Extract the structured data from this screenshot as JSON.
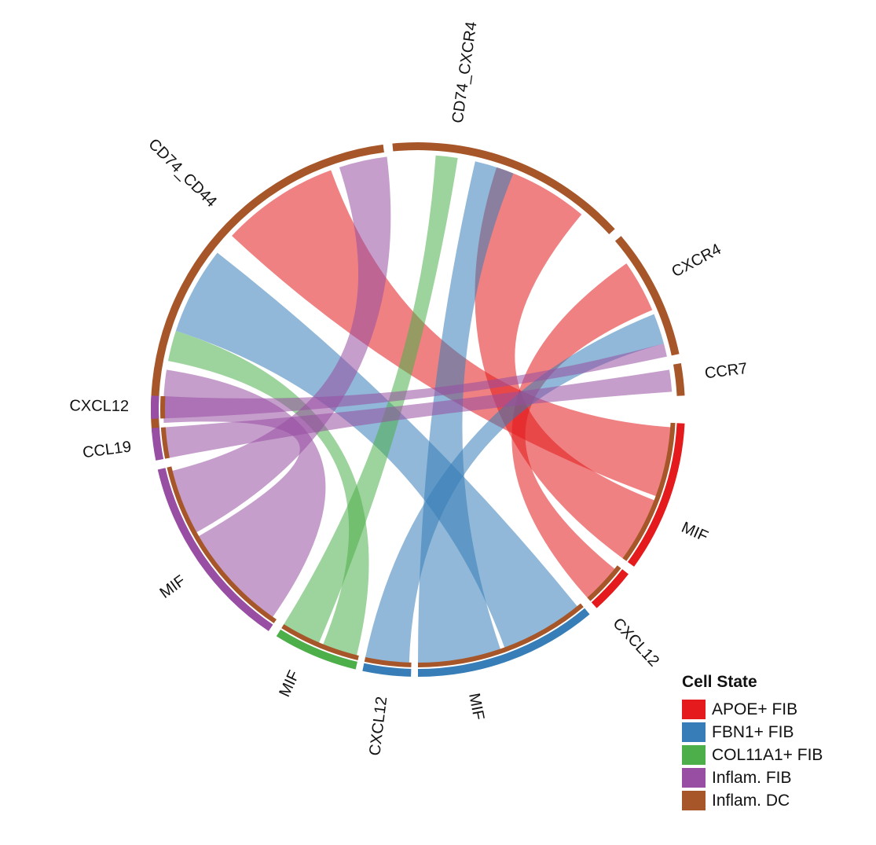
{
  "colors": {
    "apoe": "#e41a1c",
    "fbn1": "#377eb8",
    "col11": "#4daf4a",
    "inflam_fib": "#984ea3",
    "inflam_dc": "#a65628"
  },
  "legend": {
    "title": "Cell State",
    "items": [
      {
        "label": "APOE+ FIB",
        "color": "#e41a1c"
      },
      {
        "label": "FBN1+ FIB",
        "color": "#377eb8"
      },
      {
        "label": "COL11A1+ FIB",
        "color": "#4daf4a"
      },
      {
        "label": "Inflam. FIB",
        "color": "#984ea3"
      },
      {
        "label": "Inflam. DC",
        "color": "#a65628"
      }
    ]
  },
  "sectors": [
    {
      "id": "cd74_cd44",
      "label": "CD74_CD44",
      "cell": "inflam_dc"
    },
    {
      "id": "cd74_cxcr4",
      "label": "CD74_CXCR4",
      "cell": "inflam_dc"
    },
    {
      "id": "cxcr4",
      "label": "CXCR4",
      "cell": "inflam_dc"
    },
    {
      "id": "ccr7",
      "label": "CCR7",
      "cell": "inflam_dc"
    },
    {
      "id": "apoe_mif",
      "label": "MIF",
      "cell": "apoe"
    },
    {
      "id": "apoe_cxcl12",
      "label": "CXCL12",
      "cell": "apoe"
    },
    {
      "id": "fbn1_mif",
      "label": "MIF",
      "cell": "fbn1"
    },
    {
      "id": "fbn1_cxcl12",
      "label": "CXCL12",
      "cell": "fbn1"
    },
    {
      "id": "col11_mif",
      "label": "MIF",
      "cell": "col11"
    },
    {
      "id": "inflam_mif",
      "label": "MIF",
      "cell": "inflam_fib"
    },
    {
      "id": "inflam_ccl19",
      "label": "CCL19",
      "cell": "inflam_fib"
    },
    {
      "id": "inflam_cxcl12",
      "label": "CXCL12",
      "cell": "inflam_fib"
    }
  ],
  "links": [
    {
      "from": "apoe_mif",
      "to": "cd74_cd44",
      "cell": "apoe"
    },
    {
      "from": "apoe_mif",
      "to": "cd74_cxcr4",
      "cell": "apoe"
    },
    {
      "from": "apoe_cxcl12",
      "to": "cxcr4",
      "cell": "apoe"
    },
    {
      "from": "fbn1_mif",
      "to": "cd74_cd44",
      "cell": "fbn1"
    },
    {
      "from": "fbn1_mif",
      "to": "cd74_cxcr4",
      "cell": "fbn1"
    },
    {
      "from": "fbn1_cxcl12",
      "to": "cxcr4",
      "cell": "fbn1"
    },
    {
      "from": "col11_mif",
      "to": "cd74_cd44",
      "cell": "col11"
    },
    {
      "from": "col11_mif",
      "to": "cd74_cxcr4",
      "cell": "col11"
    },
    {
      "from": "inflam_mif",
      "to": "cd74_cd44",
      "cell": "inflam_fib"
    },
    {
      "from": "inflam_mif",
      "to": "cd74_cxcr4",
      "cell": "inflam_fib"
    },
    {
      "from": "inflam_ccl19",
      "to": "ccr7",
      "cell": "inflam_fib"
    },
    {
      "from": "inflam_cxcl12",
      "to": "cxcr4",
      "cell": "inflam_fib"
    }
  ]
}
